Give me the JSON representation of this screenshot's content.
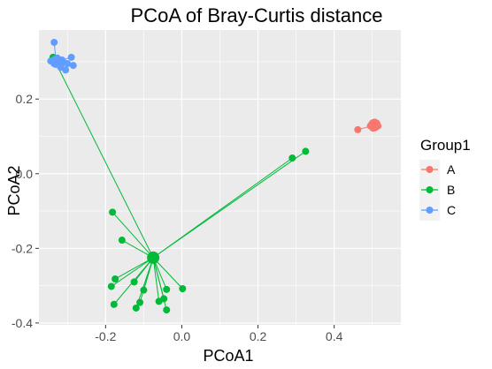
{
  "chart_data": {
    "type": "scatter",
    "title": "PCoA of Bray-Curtis distance",
    "xlabel": "PCoA1",
    "ylabel": "PCoA2",
    "xlim": [
      -0.375,
      0.575
    ],
    "ylim": [
      -0.405,
      0.385
    ],
    "x_ticks": [
      -0.2,
      0.0,
      0.2,
      0.4
    ],
    "x_tick_labels": [
      "-0.2",
      "0.0",
      "0.2",
      "0.4"
    ],
    "y_ticks": [
      -0.4,
      -0.2,
      0.0,
      0.2
    ],
    "y_tick_labels": [
      "-0.4",
      "-0.2",
      "0.0",
      "0.2"
    ],
    "grid": true,
    "legend": {
      "title": "Group1",
      "position": "right"
    },
    "series": [
      {
        "name": "A",
        "color": "#F8766D",
        "centroid": [
          0.505,
          0.13
        ],
        "points": [
          [
            0.462,
            0.118
          ],
          [
            0.495,
            0.128
          ],
          [
            0.5,
            0.134
          ],
          [
            0.505,
            0.126
          ],
          [
            0.51,
            0.13
          ],
          [
            0.502,
            0.122
          ],
          [
            0.512,
            0.135
          ],
          [
            0.498,
            0.131
          ],
          [
            0.507,
            0.138
          ],
          [
            0.515,
            0.128
          ]
        ]
      },
      {
        "name": "B",
        "color": "#00BA38",
        "centroid": [
          -0.075,
          -0.225
        ],
        "points": [
          [
            -0.338,
            0.312
          ],
          [
            0.29,
            0.042
          ],
          [
            0.325,
            0.06
          ],
          [
            -0.182,
            -0.103
          ],
          [
            -0.157,
            -0.178
          ],
          [
            -0.178,
            -0.35
          ],
          [
            -0.185,
            -0.302
          ],
          [
            -0.175,
            -0.282
          ],
          [
            -0.125,
            -0.29
          ],
          [
            -0.12,
            -0.36
          ],
          [
            -0.11,
            -0.345
          ],
          [
            -0.1,
            -0.312
          ],
          [
            -0.06,
            -0.342
          ],
          [
            -0.047,
            -0.335
          ],
          [
            -0.04,
            -0.365
          ],
          [
            -0.04,
            -0.31
          ],
          [
            0.002,
            -0.308
          ]
        ]
      },
      {
        "name": "C",
        "color": "#619CFF",
        "centroid": [
          -0.33,
          0.3
        ],
        "points": [
          [
            -0.335,
            0.352
          ],
          [
            -0.344,
            0.302
          ],
          [
            -0.327,
            0.31
          ],
          [
            -0.318,
            0.285
          ],
          [
            -0.305,
            0.278
          ],
          [
            -0.31,
            0.298
          ],
          [
            -0.29,
            0.312
          ],
          [
            -0.285,
            0.29
          ],
          [
            -0.325,
            0.3
          ],
          [
            -0.315,
            0.305
          ],
          [
            -0.3,
            0.295
          ],
          [
            -0.32,
            0.292
          ]
        ]
      }
    ]
  }
}
